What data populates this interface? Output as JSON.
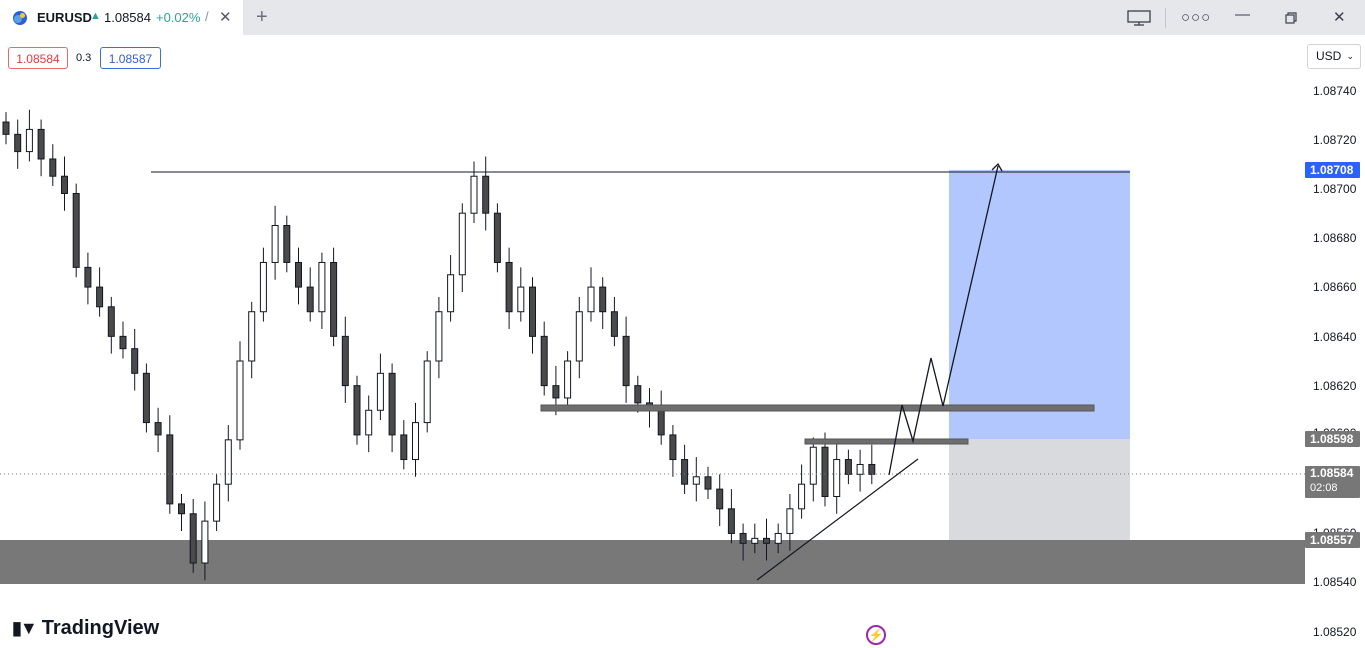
{
  "tab": {
    "symbol": "EURUSD",
    "price": "1.08584",
    "change": "+0.02%",
    "separator": "/",
    "close_icon": "close-icon",
    "new_tab_icon": "plus-icon"
  },
  "window": {
    "icons": [
      "monitor-icon",
      "more-dots-icon",
      "minimize-icon",
      "maximize-icon",
      "close-icon"
    ]
  },
  "quote": {
    "bid": "1.08584",
    "spread": "0.3",
    "ask": "1.08587"
  },
  "currency": {
    "value": "USD"
  },
  "price_axis": {
    "ticks": [
      "1.08740",
      "1.08720",
      "1.08700",
      "1.08680",
      "1.08660",
      "1.08640",
      "1.08620",
      "1.08600",
      "1.08560",
      "1.08540",
      "1.08520"
    ]
  },
  "price_tags": {
    "target": "1.08708",
    "entry": "1.08598",
    "current": "1.08584",
    "countdown": "02:08",
    "stop": "1.08557"
  },
  "branding": {
    "name": "TradingView"
  },
  "colors": {
    "up": "#22ab94",
    "down": "#e03a3a",
    "position_target": "#b3c7ff",
    "position_stop": "#d9dadd",
    "zone": "#787878"
  },
  "chart_data": {
    "type": "candlestick",
    "symbol": "EURUSD",
    "price_range": [
      1.0852,
      1.0876
    ],
    "closes": [
      1.08722,
      1.08715,
      1.08724,
      1.08712,
      1.08705,
      1.08698,
      1.08668,
      1.0866,
      1.08652,
      1.0864,
      1.08635,
      1.08625,
      1.08605,
      1.086,
      1.08572,
      1.08568,
      1.08548,
      1.08565,
      1.0858,
      1.08598,
      1.0863,
      1.0865,
      1.0867,
      1.08685,
      1.0867,
      1.0866,
      1.0865,
      1.0867,
      1.0864,
      1.0862,
      1.086,
      1.0861,
      1.08625,
      1.086,
      1.0859,
      1.08605,
      1.0863,
      1.0865,
      1.08665,
      1.0869,
      1.08705,
      1.0869,
      1.0867,
      1.0865,
      1.0866,
      1.0864,
      1.0862,
      1.08615,
      1.0863,
      1.0865,
      1.0866,
      1.0865,
      1.0864,
      1.0862,
      1.08613,
      1.0861,
      1.086,
      1.0859,
      1.0858,
      1.08583,
      1.08578,
      1.0857,
      1.0856,
      1.08556,
      1.08558,
      1.08556,
      1.0856,
      1.0857,
      1.0858,
      1.08595,
      1.08575,
      1.0859,
      1.08584,
      1.08588,
      1.08584
    ]
  }
}
